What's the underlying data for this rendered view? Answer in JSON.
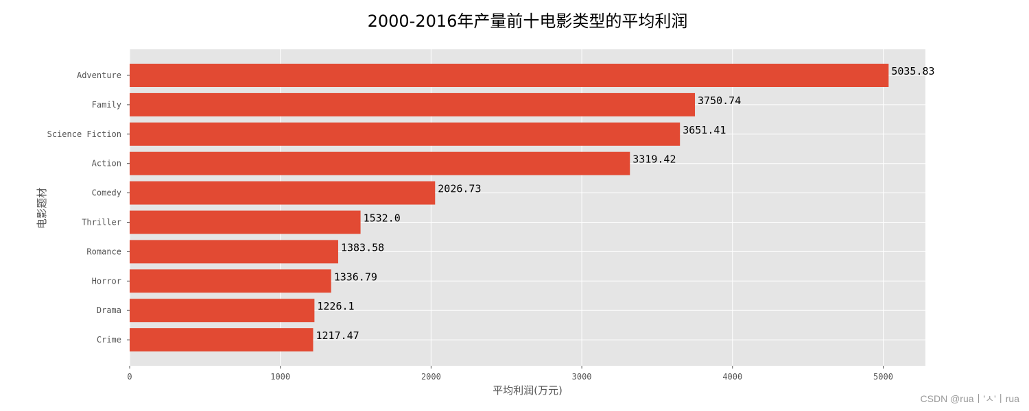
{
  "chart_data": {
    "type": "bar",
    "orientation": "horizontal",
    "title": "2000-2016年产量前十电影类型的平均利润",
    "xlabel": "平均利润(万元)",
    "ylabel": "电影题材",
    "xlim": [
      0,
      5280
    ],
    "x_ticks": [
      0,
      1000,
      2000,
      3000,
      4000,
      5000
    ],
    "grid": true,
    "bar_color": "#e24a33",
    "background_color": "#e5e5e5",
    "categories": [
      "Adventure",
      "Family",
      "Science Fiction",
      "Action",
      "Comedy",
      "Thriller",
      "Romance",
      "Horror",
      "Drama",
      "Crime"
    ],
    "values": [
      5035.83,
      3750.74,
      3651.41,
      3319.42,
      2026.73,
      1532.0,
      1383.58,
      1336.79,
      1226.1,
      1217.47
    ],
    "data_labels": [
      "5035.83",
      "3750.74",
      "3651.41",
      "3319.42",
      "2026.73",
      "1532.0",
      "1383.58",
      "1336.79",
      "1226.1",
      "1217.47"
    ]
  },
  "watermark": "CSDN @rua丨'ㅅ'丨rua"
}
